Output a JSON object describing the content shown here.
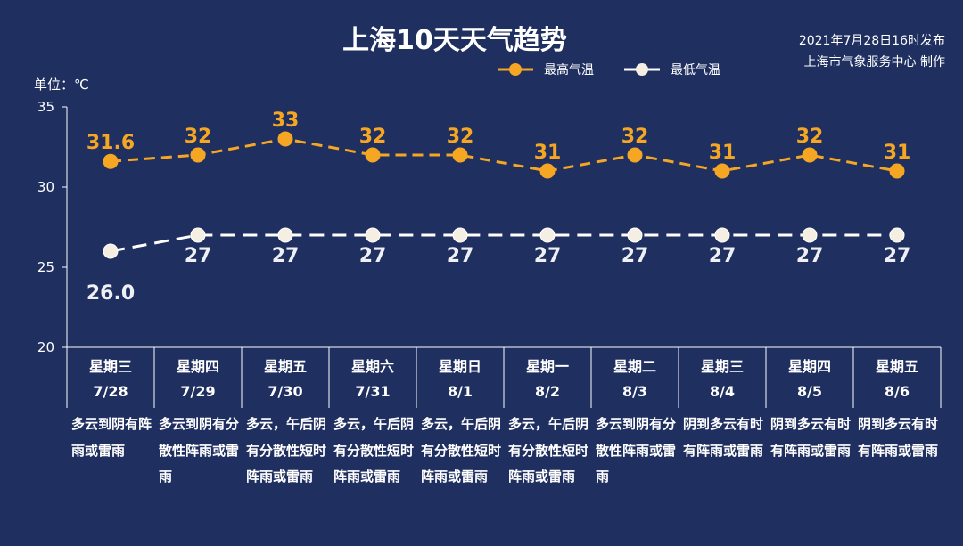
{
  "header": {
    "title": "上海10天天气趋势",
    "issue_time": "2021年7月28日16时发布",
    "issuer": "上海市气象服务中心 制作"
  },
  "unit_label": "单位：℃",
  "colors": {
    "background": "#1f2f60",
    "high": "#f5a623",
    "low": "#ffffff",
    "axis": "#ffffff"
  },
  "chart_data": {
    "type": "line",
    "title": "上海10天天气趋势",
    "ylabel": "单位：℃",
    "ylim": [
      20,
      35
    ],
    "yticks": [
      20,
      25,
      30,
      35
    ],
    "grid": false,
    "legend_position": "top",
    "categories": [
      "7/28",
      "7/29",
      "7/30",
      "7/31",
      "8/1",
      "8/2",
      "8/3",
      "8/4",
      "8/5",
      "8/6"
    ],
    "weekdays": [
      "星期三",
      "星期四",
      "星期五",
      "星期六",
      "星期日",
      "星期一",
      "星期二",
      "星期三",
      "星期四",
      "星期五"
    ],
    "series": [
      {
        "name": "最高气温",
        "color": "#f5a623",
        "values": [
          31.6,
          32,
          33,
          32,
          32,
          31,
          32,
          31,
          32,
          31
        ],
        "labels": [
          "31.6",
          "32",
          "33",
          "32",
          "32",
          "31",
          "32",
          "31",
          "32",
          "31"
        ]
      },
      {
        "name": "最低气温",
        "color": "#ffffff",
        "values": [
          26.0,
          27,
          27,
          27,
          27,
          27,
          27,
          27,
          27,
          27
        ],
        "labels": [
          "26.0",
          "27",
          "27",
          "27",
          "27",
          "27",
          "27",
          "27",
          "27",
          "27"
        ]
      }
    ],
    "descriptions": [
      "多云到阴有阵雨或雷雨",
      "多云到阴有分散性阵雨或雷雨",
      "多云，午后阴有分散性短时阵雨或雷雨",
      "多云，午后阴有分散性短时阵雨或雷雨",
      "多云，午后阴有分散性短时阵雨或雷雨",
      "多云，午后阴有分散性短时阵雨或雷雨",
      "多云到阴有分散性阵雨或雷雨",
      "阴到多云有时有阵雨或雷雨",
      "阴到多云有时有阵雨或雷雨",
      "阴到多云有时有阵雨或雷雨"
    ]
  }
}
